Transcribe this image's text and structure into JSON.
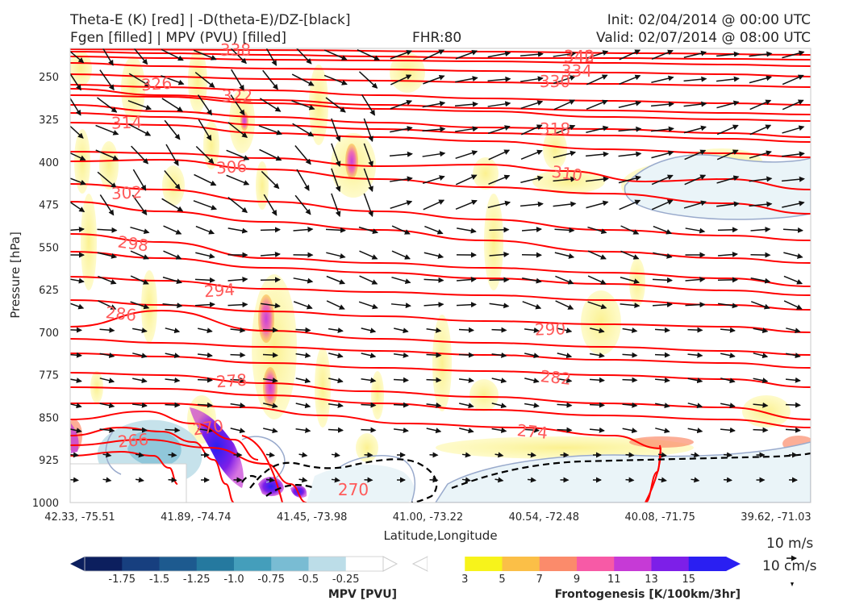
{
  "header": {
    "title_line1": "Theta-E (K) [red] | -D(theta-E)/DZ-[black]",
    "title_line2": "Fgen [filled] | MPV (PVU) [filled]",
    "fhr": "FHR:80",
    "init": "Init: 02/04/2014 @ 00:00 UTC",
    "valid": "Valid: 02/07/2014 @ 08:00 UTC"
  },
  "chart_data": {
    "type": "cross-section",
    "xlabel": "Latitude,Longitude",
    "ylabel": "Pressure [hPa]",
    "x_ticks": [
      "42.33, -75.51",
      "41.89, -74.74",
      "41.45, -73.98",
      "41.00, -73.22",
      "40.54, -72.48",
      "40.08, -71.75",
      "39.62, -71.03"
    ],
    "y_ticks": [
      250,
      325,
      400,
      475,
      550,
      625,
      700,
      775,
      850,
      925,
      1000
    ],
    "ylim": [
      1000,
      200
    ],
    "theta_e_contours": [
      {
        "label": "266",
        "level": 266
      },
      {
        "label": "270",
        "level": 270
      },
      {
        "label": "270",
        "level": 270
      },
      {
        "label": "274",
        "level": 274
      },
      {
        "label": "278",
        "level": 278
      },
      {
        "label": "282",
        "level": 282
      },
      {
        "label": "286",
        "level": 286
      },
      {
        "label": "290",
        "level": 290
      },
      {
        "label": "294",
        "level": 294
      },
      {
        "label": "298",
        "level": 298
      },
      {
        "label": "302",
        "level": 302
      },
      {
        "label": "306",
        "level": 306
      },
      {
        "label": "310",
        "level": 310
      },
      {
        "label": "314",
        "level": 314
      },
      {
        "label": "318",
        "level": 318
      },
      {
        "label": "322",
        "level": 322
      },
      {
        "label": "326",
        "level": 326
      },
      {
        "label": "330",
        "level": 330
      },
      {
        "label": "334",
        "level": 334
      },
      {
        "label": "338",
        "level": 338
      },
      {
        "label": "340",
        "level": 340
      },
      {
        "label": "342",
        "level": 342
      }
    ],
    "mpv_colorbar": {
      "title": "MPV [PVU]",
      "ticks": [
        "-1.75",
        "-1.5",
        "-1.25",
        "-1.0",
        "-0.75",
        "-0.5",
        "-0.25"
      ],
      "colors": [
        "#0c1f5e",
        "#173f7f",
        "#1d5a8f",
        "#25799f",
        "#449ebb",
        "#79bcd3",
        "#bcdde8",
        "#ffffff"
      ]
    },
    "fgen_colorbar": {
      "title": "Frontogenesis [K/100km/3hr]",
      "ticks": [
        "3",
        "5",
        "7",
        "9",
        "11",
        "13",
        "15"
      ],
      "colors": [
        "#ffffff",
        "#f7f31b",
        "#fbbf47",
        "#fb8b6b",
        "#f75aa6",
        "#c63ad6",
        "#7d1fe8",
        "#2a1ff2"
      ]
    },
    "wind_key": {
      "top_label": "10 m/s",
      "bottom_label": "10 cm/s"
    },
    "colors": {
      "theta_e": "#ff0000",
      "theta_e_label": "#ff5a5a",
      "stability": "#000000",
      "mpv_outline": "#99aacc"
    }
  }
}
